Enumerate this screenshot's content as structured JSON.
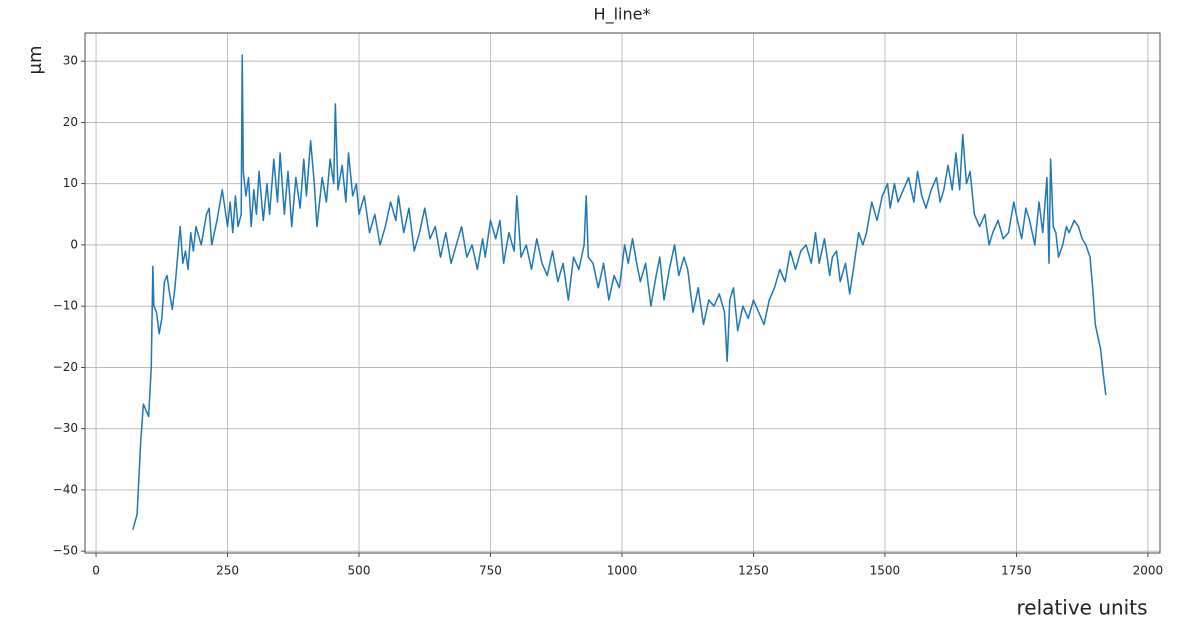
{
  "chart_data": {
    "type": "line",
    "title": "H_line*",
    "x_label": "relative units",
    "y_label": "μm",
    "color": "#1f77b4",
    "grid": true,
    "xlim": [
      -21,
      2023
    ],
    "ylim": [
      -50.3,
      34.6
    ],
    "xticks": [
      0,
      250,
      500,
      750,
      1000,
      1250,
      1500,
      1750,
      2000
    ],
    "yticks": [
      30,
      20,
      10,
      0,
      {
        "value": -10,
        "label": "−10"
      },
      {
        "value": -20,
        "label": "−20"
      },
      {
        "value": -30,
        "label": "−30"
      },
      {
        "value": -40,
        "label": "−40"
      },
      {
        "value": -50,
        "label": "−50"
      }
    ],
    "x": [
      70,
      78,
      85,
      90,
      95,
      100,
      105,
      108,
      110,
      115,
      120,
      125,
      130,
      135,
      140,
      145,
      150,
      155,
      160,
      165,
      170,
      175,
      180,
      185,
      190,
      200,
      210,
      215,
      220,
      230,
      240,
      250,
      255,
      260,
      265,
      270,
      276,
      278,
      280,
      285,
      290,
      295,
      300,
      305,
      310,
      318,
      325,
      330,
      338,
      345,
      350,
      358,
      365,
      372,
      380,
      388,
      395,
      400,
      408,
      415,
      420,
      430,
      438,
      445,
      452,
      455,
      460,
      468,
      475,
      480,
      488,
      495,
      500,
      510,
      520,
      530,
      540,
      550,
      560,
      570,
      575,
      585,
      595,
      605,
      615,
      625,
      635,
      645,
      655,
      665,
      675,
      685,
      695,
      705,
      715,
      725,
      735,
      740,
      750,
      760,
      768,
      775,
      785,
      795,
      800,
      808,
      818,
      828,
      838,
      848,
      858,
      868,
      878,
      888,
      898,
      908,
      918,
      928,
      932,
      936,
      945,
      955,
      965,
      975,
      985,
      995,
      1005,
      1012,
      1020,
      1028,
      1035,
      1045,
      1055,
      1065,
      1072,
      1080,
      1090,
      1100,
      1108,
      1118,
      1125,
      1135,
      1145,
      1155,
      1165,
      1175,
      1185,
      1195,
      1200,
      1205,
      1212,
      1220,
      1230,
      1240,
      1250,
      1260,
      1270,
      1280,
      1290,
      1300,
      1310,
      1320,
      1330,
      1340,
      1350,
      1360,
      1368,
      1375,
      1385,
      1395,
      1400,
      1408,
      1415,
      1425,
      1433,
      1440,
      1450,
      1458,
      1465,
      1475,
      1485,
      1495,
      1505,
      1510,
      1518,
      1525,
      1535,
      1545,
      1555,
      1562,
      1570,
      1578,
      1588,
      1598,
      1605,
      1612,
      1620,
      1628,
      1635,
      1642,
      1648,
      1655,
      1662,
      1670,
      1680,
      1690,
      1698,
      1705,
      1715,
      1725,
      1735,
      1745,
      1752,
      1760,
      1768,
      1775,
      1785,
      1793,
      1800,
      1808,
      1812,
      1815,
      1820,
      1825,
      1830,
      1838,
      1845,
      1850,
      1860,
      1868,
      1875,
      1882,
      1890,
      1895,
      1900,
      1905,
      1910,
      1915,
      1920
    ],
    "values": [
      -46.5,
      -44,
      -32,
      -26,
      -27,
      -28,
      -20,
      -3.5,
      -10,
      -11,
      -14.5,
      -12,
      -6,
      -5,
      -8,
      -10.5,
      -7,
      -2,
      3,
      -3,
      -1,
      -4,
      2,
      -1,
      3,
      0,
      5,
      6,
      0,
      4,
      9,
      3,
      7,
      2,
      8,
      3,
      5,
      31,
      12,
      8,
      11,
      3,
      9,
      5,
      12,
      4,
      10,
      5,
      14,
      7,
      15,
      5,
      12,
      3,
      11,
      6,
      14,
      8,
      17,
      10,
      3,
      11,
      7,
      14,
      10,
      23,
      9,
      13,
      7,
      15,
      8,
      10,
      5,
      8,
      2,
      5,
      0,
      3,
      7,
      4,
      8,
      2,
      6,
      -1,
      2,
      6,
      1,
      3,
      -2,
      2,
      -3,
      0,
      3,
      -2,
      0,
      -4,
      1,
      -2,
      4,
      1,
      4,
      -3,
      2,
      -1,
      8,
      -2,
      0,
      -4,
      1,
      -3,
      -5,
      -1,
      -6,
      -3,
      -9,
      -2,
      -4,
      0,
      8,
      -2,
      -3,
      -7,
      -3,
      -9,
      -5,
      -7,
      0,
      -3,
      1,
      -3,
      -6,
      -3,
      -10,
      -5,
      -2,
      -9,
      -4,
      0,
      -5,
      -2,
      -4,
      -11,
      -7,
      -13,
      -9,
      -10,
      -8,
      -11,
      -19,
      -9,
      -7,
      -14,
      -10,
      -12,
      -9,
      -11,
      -13,
      -9,
      -7,
      -4,
      -6,
      -1,
      -4,
      -1,
      0,
      -3,
      2,
      -3,
      1,
      -5,
      -2,
      -1,
      -6,
      -3,
      -8,
      -4,
      2,
      0,
      2,
      7,
      4,
      8,
      10,
      6,
      10,
      7,
      9,
      11,
      7,
      12,
      8,
      6,
      9,
      11,
      7,
      9,
      13,
      9,
      15,
      9,
      18,
      10,
      12,
      5,
      3,
      5,
      0,
      2,
      4,
      1,
      2,
      7,
      4,
      1,
      6,
      4,
      0,
      7,
      2,
      11,
      -3,
      14,
      3,
      2,
      -2,
      0,
      3,
      2,
      4,
      3,
      1,
      0,
      -2,
      -7,
      -13,
      -15,
      -17,
      -21,
      -24.5
    ]
  }
}
